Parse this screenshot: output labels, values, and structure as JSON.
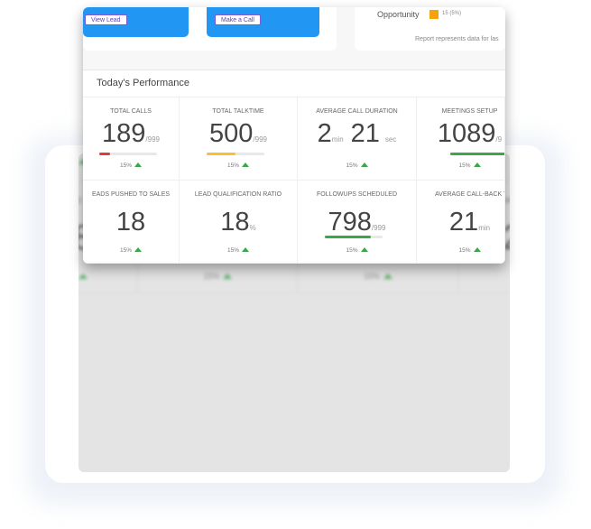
{
  "top": {
    "view_lead": "View Lead",
    "make_call": "Make a Call",
    "opportunity_label": "Opportunity",
    "opportunity_value": "15 (5%)",
    "opportunity_color": "#f5a20d",
    "report_note": "Report represents data for las"
  },
  "section_title": "Today's Performance",
  "metrics": [
    {
      "label": "TOTAL CALLS",
      "value": "189",
      "unit": "/999",
      "progress": 0.19,
      "bar_color": "#e53935",
      "change": "15%",
      "trend": "up"
    },
    {
      "label": "TOTAL TALKTIME",
      "value": "500",
      "unit": "/999",
      "progress": 0.5,
      "bar_color": "#fbc02d",
      "change": "15%",
      "trend": "up"
    },
    {
      "label": "AVERAGE CALL DURATION",
      "value": "2",
      "unit": "min",
      "value2": "21",
      "unit2": "sec",
      "change": "15%",
      "trend": "up"
    },
    {
      "label": "MEETINGS SETUP",
      "value": "1089",
      "unit": "/9",
      "progress": 1.0,
      "bar_color": "#3aa74a",
      "change": "15%",
      "trend": "up"
    },
    {
      "label": "EADS PUSHED TO SALES",
      "value": "18",
      "unit": "",
      "change": "15%",
      "trend": "up"
    },
    {
      "label": "LEAD QUALIFICATION RATIO",
      "value": "18",
      "unit": "%",
      "change": "15%",
      "trend": "up"
    },
    {
      "label": "FOLLOWUPS SCHEDULED",
      "value": "798",
      "unit": "/999",
      "progress": 0.8,
      "bar_color": "#3aa74a",
      "change": "15%",
      "trend": "up"
    },
    {
      "label": "AVERAGE CALL-BACK TI",
      "value": "21",
      "unit": "min",
      "change": "15%",
      "trend": "up"
    }
  ]
}
